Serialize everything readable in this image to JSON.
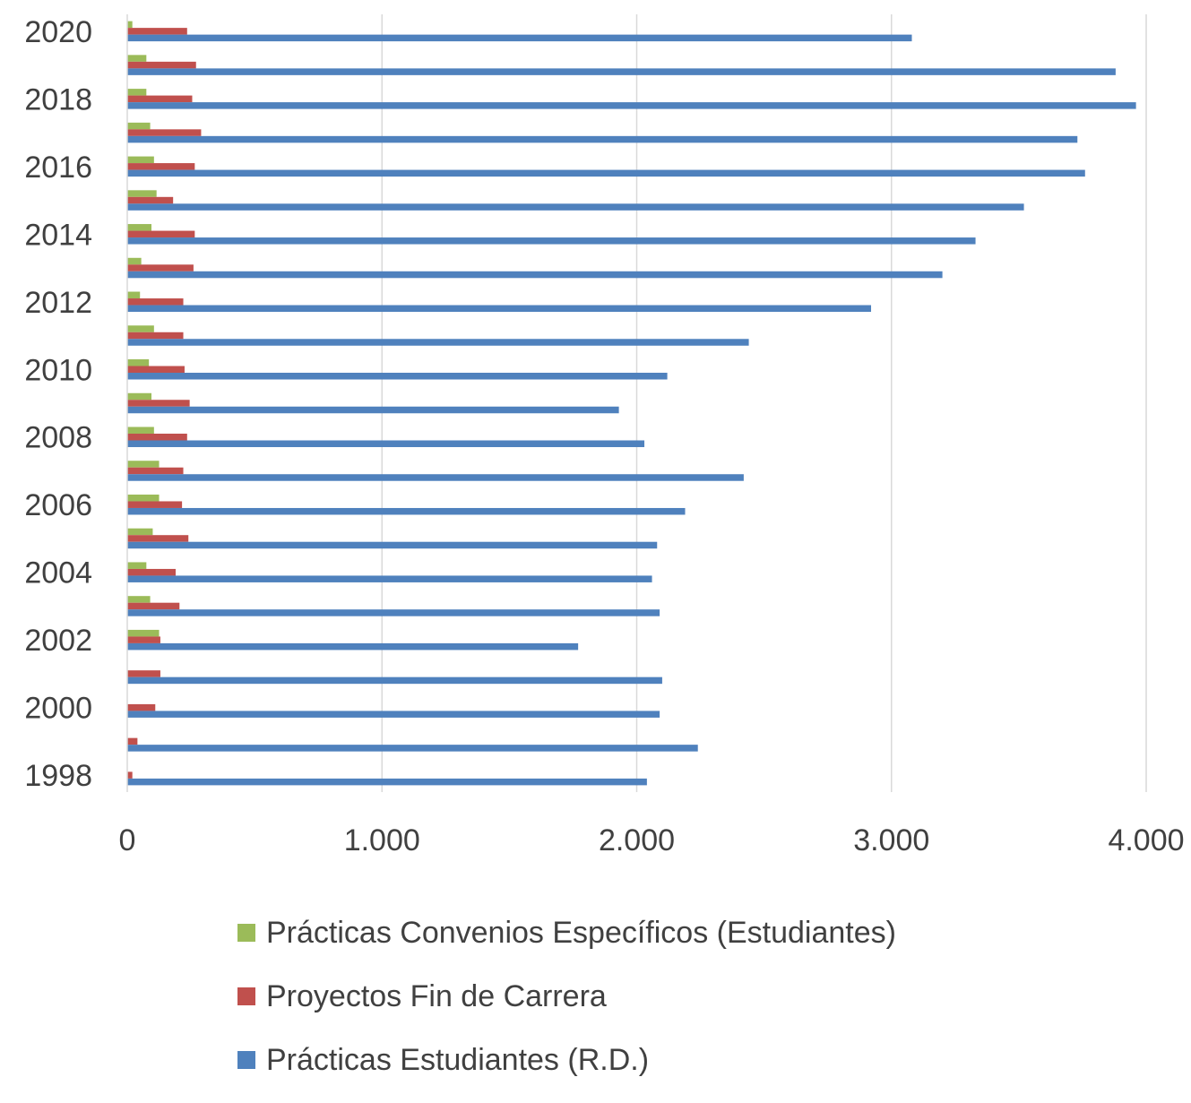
{
  "chart_data": {
    "type": "bar",
    "orientation": "horizontal",
    "categories": [
      "2020",
      "2019",
      "2018",
      "2017",
      "2016",
      "2015",
      "2014",
      "2013",
      "2012",
      "2011",
      "2010",
      "2009",
      "2008",
      "2007",
      "2006",
      "2005",
      "2004",
      "2003",
      "2002",
      "2001",
      "2000",
      "1999",
      "1998"
    ],
    "category_tick_labels": [
      "2020",
      "",
      "2018",
      "",
      "2016",
      "",
      "2014",
      "",
      "2012",
      "",
      "2010",
      "",
      "2008",
      "",
      "2006",
      "",
      "2004",
      "",
      "2002",
      "",
      "2000",
      "",
      "1998"
    ],
    "series": [
      {
        "name": "Prácticas Convenios Específicos (Estudiantes)",
        "color": "#9BBB59",
        "values": [
          20,
          75,
          75,
          90,
          105,
          115,
          95,
          55,
          50,
          105,
          85,
          95,
          105,
          125,
          125,
          100,
          75,
          90,
          125,
          0,
          0,
          0,
          0
        ]
      },
      {
        "name": "Proyectos Fin de Carrera",
        "color": "#C0504D",
        "values": [
          235,
          270,
          255,
          290,
          265,
          180,
          265,
          260,
          220,
          220,
          225,
          245,
          235,
          220,
          215,
          240,
          190,
          205,
          130,
          130,
          110,
          40,
          20
        ]
      },
      {
        "name": "Prácticas Estudiantes (R.D.)",
        "color": "#4F81BD",
        "values": [
          3080,
          3880,
          3960,
          3730,
          3760,
          3520,
          3330,
          3200,
          2920,
          2440,
          2120,
          1930,
          2030,
          2420,
          2190,
          2080,
          2060,
          2090,
          1770,
          2100,
          2090,
          2240,
          2040
        ]
      }
    ],
    "xlim": [
      0,
      4000
    ],
    "xticks": [
      0,
      1000,
      2000,
      3000,
      4000
    ],
    "xtick_labels": [
      "0",
      "1.000",
      "2.000",
      "3.000",
      "4.000"
    ],
    "title": "",
    "xlabel": "",
    "ylabel": "",
    "grid": "vertical",
    "legend_position": "bottom"
  },
  "legend": {
    "items": [
      {
        "label": "Prácticas Convenios Específicos (Estudiantes)",
        "color": "#9BBB59"
      },
      {
        "label": "Proyectos Fin de Carrera",
        "color": "#C0504D"
      },
      {
        "label": "Prácticas Estudiantes (R.D.)",
        "color": "#4F81BD"
      }
    ]
  }
}
